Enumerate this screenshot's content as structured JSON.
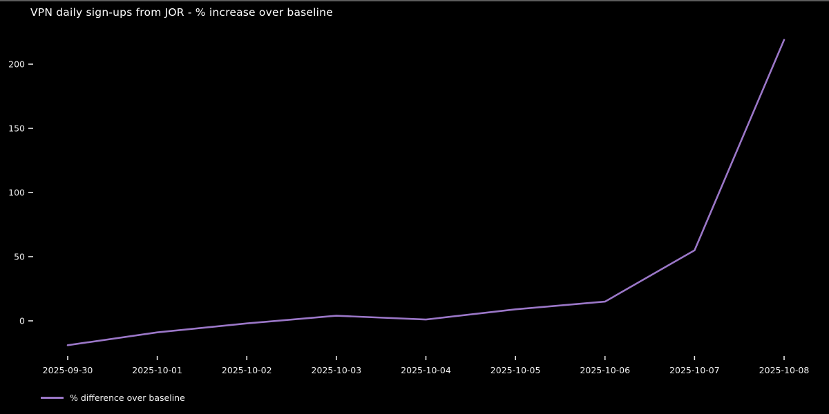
{
  "window": {
    "background_color": "#000000",
    "top_border_color": "#5c5c5c"
  },
  "chart_data": {
    "type": "line",
    "title": "VPN daily sign-ups from JOR - % increase over baseline",
    "x": [
      "2025-09-30",
      "2025-10-01",
      "2025-10-02",
      "2025-10-03",
      "2025-10-04",
      "2025-10-05",
      "2025-10-06",
      "2025-10-07",
      "2025-10-08"
    ],
    "series": [
      {
        "name": "% difference over baseline",
        "values": [
          -19,
          -9,
          -2,
          4,
          1,
          9,
          15,
          55,
          219
        ],
        "color": "#9b77c8"
      }
    ],
    "xlabel": "",
    "ylabel": "",
    "y_ticks": [
      0,
      50,
      100,
      150,
      200
    ],
    "ylim": [
      -31,
      231
    ],
    "grid": false,
    "background": "#000000",
    "text_color": "#ffffff",
    "legend_position": "lower-left-below-axis"
  }
}
